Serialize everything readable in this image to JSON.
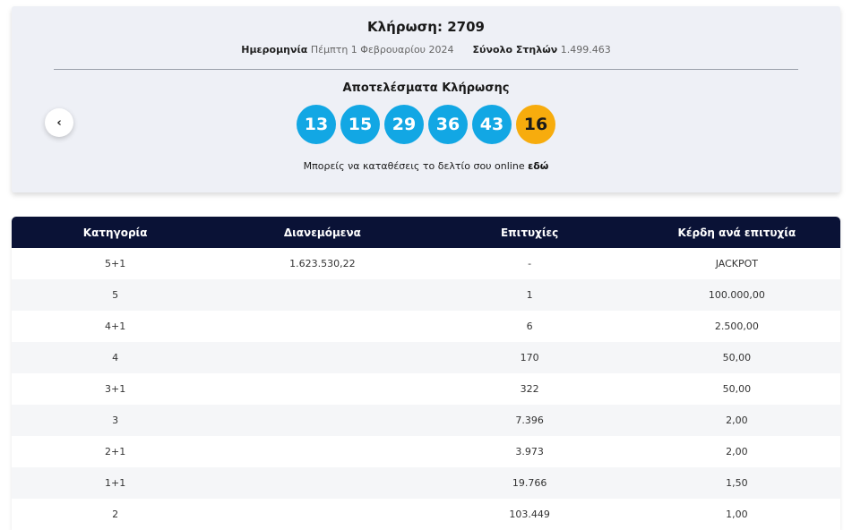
{
  "draw": {
    "title": "Κλήρωση: 2709",
    "date_label": "Ημερομηνία",
    "date_value": "Πέμπτη 1 Φεβρουαρίου 2024",
    "columns_label": "Σύνολο Στηλών",
    "columns_value": "1.499.463"
  },
  "results": {
    "heading": "Αποτελέσματα Κλήρωσης",
    "numbers": [
      "13",
      "15",
      "29",
      "36",
      "43"
    ],
    "bonus": "16",
    "back_icon": "‹"
  },
  "online": {
    "text": "Μπορείς να καταθέσεις το δελτίο σου online ",
    "link": "εδώ"
  },
  "colors": {
    "ball": "#12a7e4",
    "bonus": "#f7ac0d",
    "header": "#0a1236"
  },
  "table": {
    "headers": [
      "Κατηγορία",
      "Διανεμόμενα",
      "Επιτυχίες",
      "Κέρδη ανά επιτυχία"
    ],
    "rows": [
      [
        "5+1",
        "1.623.530,22",
        "-",
        "JACKPOT"
      ],
      [
        "5",
        "",
        "1",
        "100.000,00"
      ],
      [
        "4+1",
        "",
        "6",
        "2.500,00"
      ],
      [
        "4",
        "",
        "170",
        "50,00"
      ],
      [
        "3+1",
        "",
        "322",
        "50,00"
      ],
      [
        "3",
        "",
        "7.396",
        "2,00"
      ],
      [
        "2+1",
        "",
        "3.973",
        "2,00"
      ],
      [
        "1+1",
        "",
        "19.766",
        "1,50"
      ],
      [
        "2",
        "",
        "103.449",
        "1,00"
      ]
    ]
  }
}
